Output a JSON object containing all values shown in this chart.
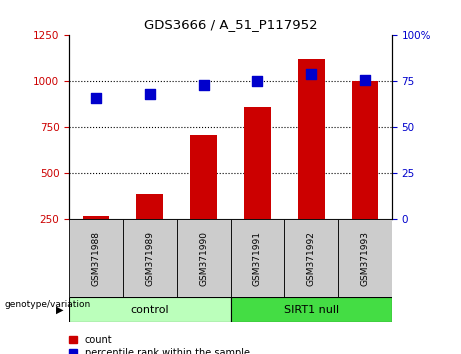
{
  "title": "GDS3666 / A_51_P117952",
  "categories": [
    "GSM371988",
    "GSM371989",
    "GSM371990",
    "GSM371991",
    "GSM371992",
    "GSM371993"
  ],
  "bar_values": [
    270,
    390,
    710,
    860,
    1120,
    1000
  ],
  "scatter_values": [
    66,
    68,
    73,
    75,
    79,
    76
  ],
  "bar_color": "#cc0000",
  "scatter_color": "#0000cc",
  "left_ylim": [
    250,
    1250
  ],
  "left_yticks": [
    250,
    500,
    750,
    1000,
    1250
  ],
  "right_ylim": [
    0,
    100
  ],
  "right_yticks": [
    0,
    25,
    50,
    75,
    100
  ],
  "right_yticklabels": [
    "0",
    "25",
    "50",
    "75",
    "100%"
  ],
  "grid_values": [
    500,
    750,
    1000
  ],
  "control_label": "control",
  "sirt1_label": "SIRT1 null",
  "genotype_label": "genotype/variation",
  "legend_bar_label": "count",
  "legend_scatter_label": "percentile rank within the sample",
  "control_color": "#bbffbb",
  "sirt1_color": "#44dd44",
  "xlabel_area_color": "#cccccc",
  "background_color": "#ffffff",
  "scatter_marker_size": 55
}
